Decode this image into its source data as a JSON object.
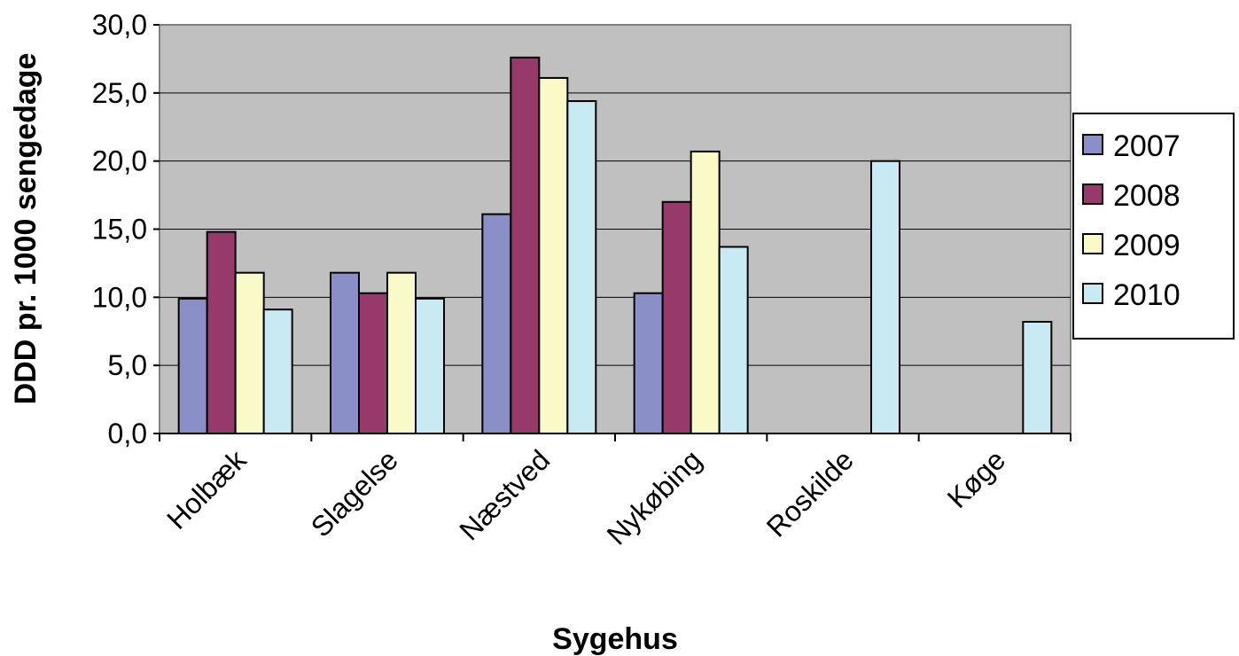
{
  "chart_data": {
    "type": "bar",
    "title": "",
    "xlabel": "Sygehus",
    "ylabel": "DDD pr. 1000 sengedage",
    "ylim": [
      0,
      30
    ],
    "yticks": [
      "0,0",
      "5,0",
      "10,0",
      "15,0",
      "20,0",
      "25,0",
      "30,0"
    ],
    "ytick_values": [
      0,
      5,
      10,
      15,
      20,
      25,
      30
    ],
    "categories": [
      "Holbæk",
      "Slagelse",
      "Næstved",
      "Nykøbing",
      "Roskilde",
      "Køge"
    ],
    "series": [
      {
        "name": "2007",
        "color": "#8b8fc8",
        "values": [
          9.9,
          11.8,
          16.1,
          10.3,
          null,
          null
        ]
      },
      {
        "name": "2008",
        "color": "#953a6b",
        "values": [
          14.8,
          10.3,
          27.6,
          17.0,
          null,
          null
        ]
      },
      {
        "name": "2009",
        "color": "#fafac8",
        "values": [
          11.8,
          11.8,
          26.1,
          20.7,
          null,
          null
        ]
      },
      {
        "name": "2010",
        "color": "#c8eaf2",
        "values": [
          9.1,
          9.9,
          24.4,
          13.7,
          20.0,
          8.2
        ]
      }
    ],
    "plot_background": "#c0c0c0",
    "grid": true,
    "legend_position": "right"
  }
}
